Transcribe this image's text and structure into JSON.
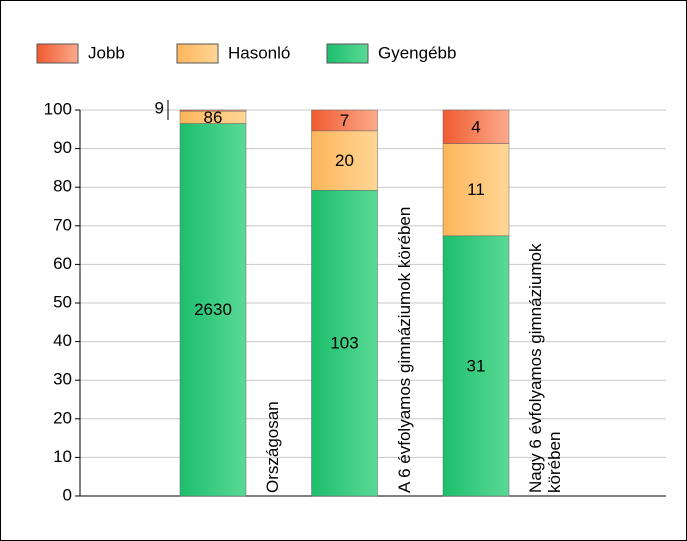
{
  "chart_data": {
    "type": "stacked-bar-100",
    "categories": [
      "Országosan",
      "A 6 évfolyamos gimnáziumok körében",
      "Nagy 6 évfolyamos gimnáziumok körében"
    ],
    "series": [
      {
        "name": "Jobb",
        "color": "#f47a52",
        "values": [
          0.3,
          5.4,
          8.7
        ],
        "counts": [
          9,
          7,
          4
        ]
      },
      {
        "name": "Hasonló",
        "color": "#fec46e",
        "values": [
          3.2,
          15.4,
          23.9
        ],
        "counts": [
          86,
          20,
          11
        ]
      },
      {
        "name": "Gyengébb",
        "color": "#2dc878",
        "values": [
          96.5,
          79.2,
          67.4
        ],
        "counts": [
          2630,
          103,
          31
        ]
      }
    ],
    "ylim": [
      0,
      100
    ],
    "yticks": [
      0,
      10,
      20,
      30,
      40,
      50,
      60,
      70,
      80,
      90,
      100
    ],
    "grid": true
  }
}
